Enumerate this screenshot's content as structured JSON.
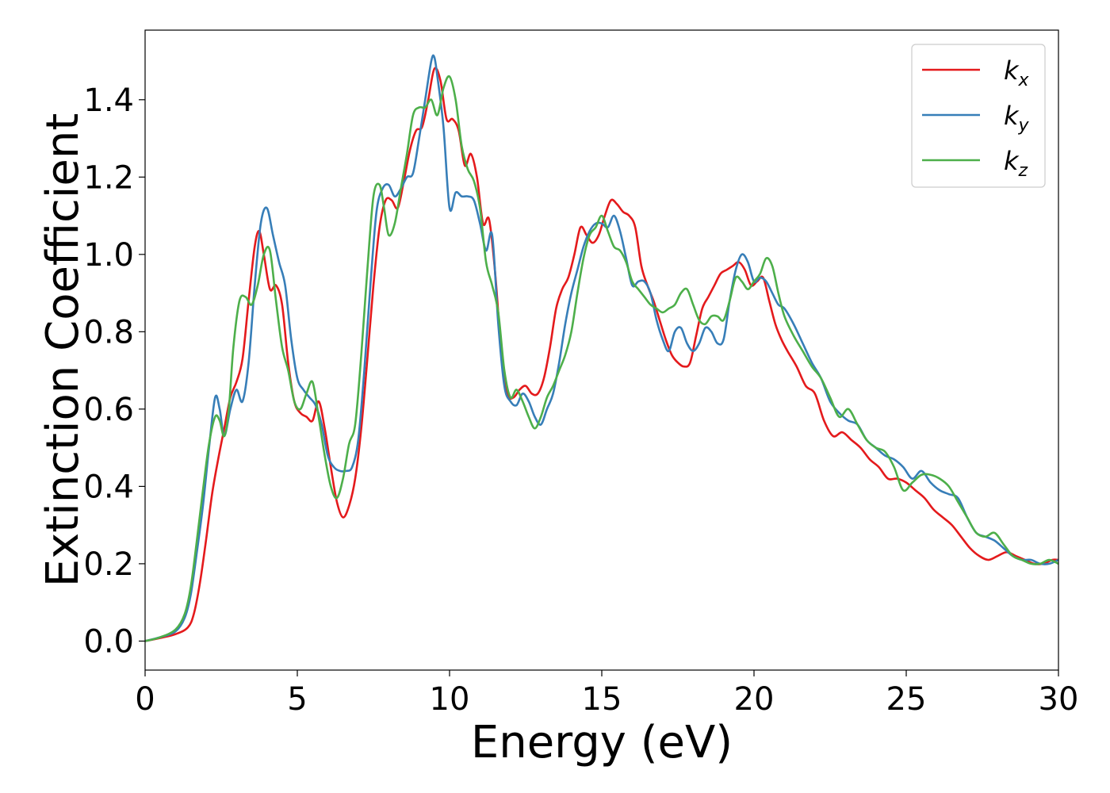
{
  "chart_data": {
    "type": "line",
    "xlabel": "Energy (eV)",
    "ylabel": "Extinction Coefficient",
    "xlim": [
      0,
      30
    ],
    "ylim": [
      -0.075,
      1.58
    ],
    "xticks": [
      0,
      5,
      10,
      15,
      20,
      25,
      30
    ],
    "xtick_labels": [
      "0",
      "5",
      "10",
      "15",
      "20",
      "25",
      "30"
    ],
    "yticks": [
      0.0,
      0.2,
      0.4,
      0.6,
      0.8,
      1.0,
      1.2,
      1.4
    ],
    "ytick_labels": [
      "0.0",
      "0.2",
      "0.4",
      "0.6",
      "0.8",
      "1.0",
      "1.2",
      "1.4"
    ],
    "grid": false,
    "legend_position": "top-right",
    "series": [
      {
        "name": "k",
        "subscript": "x",
        "color": "#e41a1c",
        "x": [
          0,
          0.5,
          1.0,
          1.4,
          1.6,
          1.8,
          2.0,
          2.2,
          2.4,
          2.6,
          2.8,
          3.0,
          3.2,
          3.4,
          3.6,
          3.75,
          3.9,
          4.1,
          4.3,
          4.5,
          4.7,
          4.9,
          5.1,
          5.3,
          5.5,
          5.7,
          5.9,
          6.1,
          6.3,
          6.5,
          6.7,
          6.9,
          7.1,
          7.3,
          7.5,
          7.7,
          7.9,
          8.1,
          8.3,
          8.5,
          8.7,
          8.9,
          9.1,
          9.3,
          9.5,
          9.7,
          9.9,
          10.1,
          10.3,
          10.5,
          10.7,
          10.9,
          11.1,
          11.3,
          11.5,
          11.7,
          11.9,
          12.1,
          12.3,
          12.5,
          12.7,
          12.9,
          13.1,
          13.3,
          13.5,
          13.7,
          13.9,
          14.1,
          14.3,
          14.5,
          14.7,
          14.9,
          15.1,
          15.3,
          15.5,
          15.7,
          15.9,
          16.1,
          16.3,
          16.5,
          16.7,
          16.9,
          17.1,
          17.3,
          17.5,
          17.7,
          17.9,
          18.1,
          18.3,
          18.5,
          18.7,
          18.9,
          19.1,
          19.3,
          19.5,
          19.7,
          19.9,
          20.1,
          20.3,
          20.5,
          20.7,
          20.9,
          21.1,
          21.4,
          21.7,
          22.0,
          22.3,
          22.6,
          22.9,
          23.2,
          23.5,
          23.8,
          24.1,
          24.4,
          24.7,
          25.0,
          25.3,
          25.6,
          25.9,
          26.2,
          26.5,
          26.8,
          27.1,
          27.4,
          27.7,
          28.0,
          28.3,
          28.6,
          28.9,
          29.2,
          29.5,
          29.8,
          30.0
        ],
        "y": [
          0.0,
          0.008,
          0.018,
          0.035,
          0.07,
          0.15,
          0.26,
          0.38,
          0.47,
          0.55,
          0.63,
          0.67,
          0.73,
          0.88,
          1.02,
          1.06,
          1.0,
          0.91,
          0.92,
          0.87,
          0.72,
          0.62,
          0.59,
          0.58,
          0.57,
          0.62,
          0.55,
          0.45,
          0.36,
          0.32,
          0.35,
          0.42,
          0.55,
          0.73,
          0.92,
          1.07,
          1.14,
          1.14,
          1.12,
          1.19,
          1.27,
          1.32,
          1.33,
          1.4,
          1.48,
          1.45,
          1.35,
          1.35,
          1.32,
          1.23,
          1.26,
          1.2,
          1.08,
          1.09,
          0.95,
          0.75,
          0.64,
          0.63,
          0.65,
          0.66,
          0.64,
          0.64,
          0.68,
          0.76,
          0.86,
          0.91,
          0.94,
          1.0,
          1.07,
          1.05,
          1.03,
          1.05,
          1.1,
          1.14,
          1.13,
          1.11,
          1.1,
          1.07,
          0.97,
          0.92,
          0.88,
          0.83,
          0.78,
          0.74,
          0.72,
          0.71,
          0.72,
          0.79,
          0.86,
          0.89,
          0.92,
          0.95,
          0.96,
          0.97,
          0.98,
          0.96,
          0.92,
          0.93,
          0.94,
          0.88,
          0.82,
          0.78,
          0.75,
          0.71,
          0.66,
          0.64,
          0.57,
          0.53,
          0.54,
          0.52,
          0.5,
          0.47,
          0.45,
          0.42,
          0.42,
          0.41,
          0.39,
          0.37,
          0.34,
          0.32,
          0.3,
          0.27,
          0.24,
          0.22,
          0.21,
          0.22,
          0.23,
          0.22,
          0.21,
          0.2,
          0.2,
          0.21,
          0.21
        ]
      },
      {
        "name": "k",
        "subscript": "y",
        "color": "#377eb8",
        "x": [
          0,
          0.5,
          1.0,
          1.3,
          1.5,
          1.7,
          1.9,
          2.1,
          2.3,
          2.45,
          2.6,
          2.8,
          3.0,
          3.2,
          3.4,
          3.6,
          3.8,
          4.0,
          4.2,
          4.4,
          4.6,
          4.8,
          5.0,
          5.2,
          5.4,
          5.6,
          5.8,
          6.0,
          6.2,
          6.4,
          6.6,
          6.8,
          7.0,
          7.2,
          7.4,
          7.6,
          7.8,
          8.0,
          8.2,
          8.4,
          8.6,
          8.8,
          9.0,
          9.2,
          9.4,
          9.5,
          9.6,
          9.8,
          10.0,
          10.2,
          10.4,
          10.6,
          10.8,
          11.0,
          11.2,
          11.4,
          11.6,
          11.8,
          12.0,
          12.2,
          12.4,
          12.6,
          12.8,
          13.0,
          13.2,
          13.4,
          13.6,
          13.8,
          14.0,
          14.2,
          14.4,
          14.6,
          14.8,
          15.0,
          15.2,
          15.4,
          15.6,
          15.8,
          16.0,
          16.2,
          16.4,
          16.6,
          16.8,
          17.0,
          17.2,
          17.4,
          17.6,
          17.8,
          18.0,
          18.2,
          18.4,
          18.6,
          18.8,
          19.0,
          19.2,
          19.4,
          19.6,
          19.8,
          20.0,
          20.2,
          20.4,
          20.6,
          20.8,
          21.0,
          21.3,
          21.6,
          21.9,
          22.2,
          22.5,
          22.8,
          23.1,
          23.4,
          23.7,
          24.0,
          24.3,
          24.6,
          24.9,
          25.2,
          25.5,
          25.8,
          26.1,
          26.4,
          26.7,
          27.0,
          27.3,
          27.6,
          27.9,
          28.2,
          28.5,
          28.8,
          29.1,
          29.4,
          29.7,
          30.0
        ],
        "y": [
          0.0,
          0.01,
          0.025,
          0.06,
          0.12,
          0.23,
          0.35,
          0.5,
          0.63,
          0.6,
          0.53,
          0.6,
          0.65,
          0.62,
          0.72,
          0.92,
          1.08,
          1.12,
          1.05,
          0.98,
          0.92,
          0.78,
          0.68,
          0.65,
          0.63,
          0.61,
          0.56,
          0.48,
          0.45,
          0.44,
          0.44,
          0.45,
          0.52,
          0.7,
          0.92,
          1.11,
          1.17,
          1.18,
          1.15,
          1.17,
          1.2,
          1.21,
          1.3,
          1.4,
          1.5,
          1.51,
          1.46,
          1.33,
          1.12,
          1.16,
          1.15,
          1.15,
          1.14,
          1.08,
          1.01,
          1.05,
          0.82,
          0.66,
          0.62,
          0.61,
          0.64,
          0.62,
          0.58,
          0.56,
          0.6,
          0.64,
          0.72,
          0.82,
          0.9,
          0.96,
          1.02,
          1.06,
          1.08,
          1.08,
          1.07,
          1.1,
          1.06,
          0.99,
          0.92,
          0.93,
          0.93,
          0.9,
          0.83,
          0.78,
          0.75,
          0.8,
          0.81,
          0.77,
          0.75,
          0.77,
          0.81,
          0.8,
          0.77,
          0.78,
          0.88,
          0.96,
          1.0,
          0.98,
          0.93,
          0.94,
          0.93,
          0.9,
          0.87,
          0.86,
          0.82,
          0.77,
          0.72,
          0.68,
          0.62,
          0.59,
          0.57,
          0.56,
          0.52,
          0.5,
          0.48,
          0.47,
          0.45,
          0.42,
          0.44,
          0.41,
          0.39,
          0.38,
          0.37,
          0.32,
          0.28,
          0.27,
          0.26,
          0.24,
          0.22,
          0.21,
          0.21,
          0.2,
          0.2,
          0.21
        ]
      },
      {
        "name": "k",
        "subscript": "z",
        "color": "#4daf4a",
        "x": [
          0,
          0.5,
          1.0,
          1.3,
          1.5,
          1.7,
          1.9,
          2.1,
          2.3,
          2.45,
          2.6,
          2.75,
          2.9,
          3.1,
          3.3,
          3.5,
          3.7,
          3.9,
          4.1,
          4.3,
          4.5,
          4.7,
          4.9,
          5.1,
          5.3,
          5.5,
          5.7,
          5.9,
          6.1,
          6.3,
          6.5,
          6.7,
          6.9,
          7.1,
          7.3,
          7.5,
          7.7,
          7.85,
          8.0,
          8.2,
          8.4,
          8.6,
          8.8,
          9.0,
          9.2,
          9.4,
          9.6,
          9.8,
          10.0,
          10.2,
          10.4,
          10.6,
          10.8,
          11.0,
          11.2,
          11.4,
          11.6,
          11.8,
          12.0,
          12.2,
          12.4,
          12.6,
          12.8,
          13.0,
          13.2,
          13.4,
          13.6,
          13.8,
          14.0,
          14.2,
          14.4,
          14.6,
          14.8,
          15.0,
          15.2,
          15.4,
          15.6,
          15.8,
          16.0,
          16.2,
          16.4,
          16.6,
          16.8,
          17.0,
          17.2,
          17.4,
          17.6,
          17.8,
          18.0,
          18.2,
          18.4,
          18.6,
          18.8,
          19.0,
          19.2,
          19.4,
          19.6,
          19.8,
          20.0,
          20.2,
          20.4,
          20.6,
          20.8,
          21.0,
          21.3,
          21.6,
          21.9,
          22.2,
          22.5,
          22.8,
          23.1,
          23.4,
          23.7,
          24.0,
          24.3,
          24.6,
          24.9,
          25.2,
          25.5,
          25.8,
          26.1,
          26.4,
          26.7,
          27.0,
          27.3,
          27.6,
          27.9,
          28.2,
          28.5,
          28.8,
          29.1,
          29.4,
          29.7,
          30.0
        ],
        "y": [
          0.0,
          0.01,
          0.03,
          0.07,
          0.14,
          0.26,
          0.39,
          0.51,
          0.58,
          0.57,
          0.53,
          0.6,
          0.76,
          0.88,
          0.89,
          0.87,
          0.92,
          1.0,
          1.01,
          0.88,
          0.76,
          0.7,
          0.62,
          0.6,
          0.64,
          0.67,
          0.58,
          0.48,
          0.4,
          0.37,
          0.42,
          0.51,
          0.56,
          0.74,
          0.96,
          1.15,
          1.18,
          1.12,
          1.05,
          1.08,
          1.17,
          1.26,
          1.36,
          1.38,
          1.38,
          1.4,
          1.36,
          1.43,
          1.46,
          1.4,
          1.28,
          1.22,
          1.19,
          1.12,
          0.98,
          0.92,
          0.85,
          0.7,
          0.63,
          0.65,
          0.62,
          0.58,
          0.55,
          0.58,
          0.63,
          0.66,
          0.7,
          0.74,
          0.8,
          0.9,
          0.99,
          1.05,
          1.07,
          1.1,
          1.06,
          1.02,
          1.01,
          0.98,
          0.93,
          0.91,
          0.89,
          0.87,
          0.86,
          0.85,
          0.86,
          0.87,
          0.9,
          0.91,
          0.87,
          0.83,
          0.82,
          0.84,
          0.84,
          0.83,
          0.88,
          0.94,
          0.93,
          0.91,
          0.93,
          0.95,
          0.99,
          0.97,
          0.9,
          0.84,
          0.79,
          0.75,
          0.71,
          0.68,
          0.63,
          0.58,
          0.6,
          0.56,
          0.52,
          0.5,
          0.49,
          0.45,
          0.39,
          0.41,
          0.43,
          0.43,
          0.42,
          0.4,
          0.36,
          0.32,
          0.28,
          0.27,
          0.28,
          0.25,
          0.22,
          0.21,
          0.2,
          0.2,
          0.21,
          0.2
        ]
      }
    ]
  }
}
